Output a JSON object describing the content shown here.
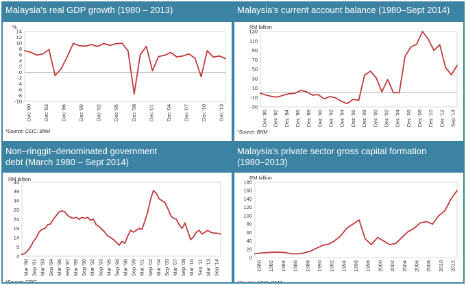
{
  "line_color": "#c0393b",
  "header_color": "#3c83a3",
  "panels": [
    {
      "title": "Malaysia's real GDP growth (1980 – 2013)",
      "source": "*Source: CEIC; BNM",
      "unit": "%"
    },
    {
      "title": "Malaysia's current account balance (1980–Sept 2014)",
      "source": "*Source: BNM",
      "unit": "RM billion"
    },
    {
      "title": "Non–ringgit–denominated government debt (March 1980 – Sept 2014)",
      "source": "*Source: CEIC",
      "unit": "RM billion"
    },
    {
      "title": "Malaysia's private sector gross capital formation (1980–2013)",
      "source": "*Source: CEIC; BNM",
      "unit": "RM billion"
    }
  ],
  "chart_data": [
    {
      "type": "line",
      "title": "Malaysia's real GDP growth (1980 – 2013)",
      "ylabel": "%",
      "ylim": [
        -10,
        14
      ],
      "yticks": [
        -10,
        -8,
        -6,
        -4,
        -2,
        0,
        2,
        4,
        6,
        8,
        10,
        12,
        14
      ],
      "xlim": [
        1980,
        2013
      ],
      "xticks": [
        "Dec '80",
        "Dec '83",
        "Dec '86",
        "Dec '89",
        "Dec '92",
        "Dec '95",
        "Dec '98",
        "Dec '01",
        "Dec '04",
        "Dec '07",
        "Dec '10",
        "Dec '13"
      ],
      "x": [
        1980,
        1981,
        1982,
        1983,
        1984,
        1985,
        1986,
        1987,
        1988,
        1989,
        1990,
        1991,
        1992,
        1993,
        1994,
        1995,
        1996,
        1997,
        1998,
        1999,
        2000,
        2001,
        2002,
        2003,
        2004,
        2005,
        2006,
        2007,
        2008,
        2009,
        2010,
        2011,
        2012,
        2013
      ],
      "values": [
        7.4,
        6.9,
        5.9,
        6.3,
        7.8,
        -1.1,
        1.2,
        5.4,
        9.9,
        9.1,
        9.0,
        9.5,
        8.9,
        9.9,
        9.2,
        9.8,
        10.0,
        7.3,
        -7.4,
        6.1,
        8.9,
        0.5,
        5.4,
        5.8,
        6.8,
        5.3,
        5.6,
        6.3,
        4.8,
        -1.5,
        7.4,
        5.2,
        5.6,
        4.7
      ],
      "grid": false
    },
    {
      "type": "line",
      "title": "Malaysia's current account balance (1980–Sept 2014)",
      "ylabel": "RM billion",
      "ylim": [
        -30,
        130
      ],
      "yticks": [
        -30,
        -10,
        10,
        30,
        50,
        70,
        90,
        110,
        130
      ],
      "xlim": [
        1980,
        2014
      ],
      "xticks": [
        "Dec '80",
        "Dec '82",
        "Dec '84",
        "Dec '86",
        "Dec '88",
        "Dec '90",
        "Dec '92",
        "Dec '94",
        "Dec '96",
        "Dec '98",
        "Dec '00",
        "Dec '02",
        "Dec '04",
        "Dec '06",
        "Dec '08",
        "Dec '10",
        "Dec '12",
        "Sep '14"
      ],
      "x": [
        1980,
        1981,
        1982,
        1983,
        1984,
        1985,
        1986,
        1987,
        1988,
        1989,
        1990,
        1991,
        1992,
        1993,
        1994,
        1995,
        1996,
        1997,
        1998,
        1999,
        2000,
        2001,
        2002,
        2003,
        2004,
        2005,
        2006,
        2007,
        2008,
        2009,
        2010,
        2011,
        2012,
        2013,
        2014
      ],
      "values": [
        -1,
        -5,
        -8,
        -9,
        -5,
        -2,
        -1,
        5,
        2,
        -5,
        -4,
        -13,
        -8,
        -11,
        -18,
        -23,
        -14,
        -16,
        37,
        46,
        32,
        2,
        28,
        0,
        0,
        77,
        97,
        103,
        130,
        114,
        90,
        102,
        54,
        38,
        58
      ],
      "grid": false
    },
    {
      "type": "line",
      "title": "Non–ringgit–denominated government debt (March 1980 – Sept 2014)",
      "ylabel": "RM billion",
      "ylim": [
        4,
        44
      ],
      "yticks": [
        4,
        9,
        14,
        19,
        24,
        29,
        34,
        39,
        44
      ],
      "xlim": [
        1980.0,
        2014.75
      ],
      "xticks": [
        "Mar '80",
        "Sep '81",
        "Mar '83",
        "Sep '84",
        "Mar '86",
        "Sep '87",
        "Mar '89",
        "Sep '90",
        "Mar '92",
        "Sep '93",
        "Mar '95",
        "Sep '96",
        "Mar '98",
        "Sep '99",
        "Mar '01",
        "Sep '02",
        "Mar '04",
        "Sep '05",
        "Mar '07",
        "Sep '08",
        "Mar '10",
        "Sep '11",
        "Mar '13",
        "Sep '14"
      ],
      "x": [
        1980.0,
        1980.5,
        1981.0,
        1981.5,
        1982.0,
        1982.5,
        1983.0,
        1983.5,
        1984.0,
        1984.5,
        1985.0,
        1985.5,
        1986.0,
        1986.5,
        1987.0,
        1987.5,
        1988.0,
        1988.5,
        1989.0,
        1989.5,
        1990.0,
        1990.5,
        1991.0,
        1991.5,
        1992.0,
        1992.5,
        1993.0,
        1993.5,
        1994.0,
        1994.5,
        1995.0,
        1995.5,
        1996.0,
        1996.5,
        1997.0,
        1997.5,
        1998.0,
        1998.5,
        1999.0,
        1999.5,
        2000.0,
        2000.5,
        2001.0,
        2001.5,
        2002.0,
        2002.5,
        2003.0,
        2003.5,
        2004.0,
        2004.5,
        2005.0,
        2005.5,
        2006.0,
        2006.5,
        2007.0,
        2007.5,
        2008.0,
        2008.5,
        2009.0,
        2009.5,
        2010.0,
        2010.5,
        2011.0,
        2011.5,
        2012.0,
        2012.5,
        2013.0,
        2013.5,
        2014.0,
        2014.75
      ],
      "values": [
        5,
        5.5,
        7,
        9,
        12,
        14,
        17,
        18.5,
        19,
        21,
        21.5,
        24,
        26,
        28,
        28.5,
        28,
        26,
        25,
        24.5,
        25,
        24,
        25,
        24.5,
        25,
        23.5,
        24,
        21,
        20,
        18.5,
        17,
        15,
        14,
        13,
        11.5,
        10,
        12,
        11,
        15,
        18,
        17,
        18,
        19,
        18.5,
        23,
        28,
        35,
        39.5,
        38,
        35,
        34,
        33,
        30,
        26,
        24.5,
        24,
        21,
        19,
        22,
        17.5,
        13,
        14.5,
        17,
        18,
        16,
        17,
        18,
        17,
        16.5,
        16.5,
        16
      ],
      "grid": false
    },
    {
      "type": "line",
      "title": "Malaysia's private sector gross capital formation (1980–2013)",
      "ylabel": "RM billion",
      "ylim": [
        0,
        180
      ],
      "yticks": [
        0,
        20,
        40,
        60,
        80,
        100,
        120,
        140,
        160,
        180
      ],
      "xlim": [
        1980,
        2013
      ],
      "xticks": [
        "1980",
        "1982",
        "1984",
        "1986",
        "1988",
        "1990",
        "1992",
        "1994",
        "1996",
        "1998",
        "2000",
        "2002",
        "2004",
        "2006",
        "2008",
        "2010",
        "2012"
      ],
      "x": [
        1980,
        1981,
        1982,
        1983,
        1984,
        1985,
        1986,
        1987,
        1988,
        1989,
        1990,
        1991,
        1992,
        1993,
        1994,
        1995,
        1996,
        1997,
        1998,
        1999,
        2000,
        2001,
        2002,
        2003,
        2004,
        2005,
        2006,
        2007,
        2008,
        2009,
        2010,
        2011,
        2012,
        2013
      ],
      "values": [
        9,
        11,
        12,
        13,
        13,
        12,
        9,
        9,
        11,
        15,
        22,
        29,
        32,
        40,
        52,
        70,
        80,
        90,
        45,
        31,
        48,
        40,
        31,
        34,
        48,
        62,
        70,
        83,
        86,
        80,
        100,
        112,
        140,
        160
      ],
      "grid": false
    }
  ]
}
